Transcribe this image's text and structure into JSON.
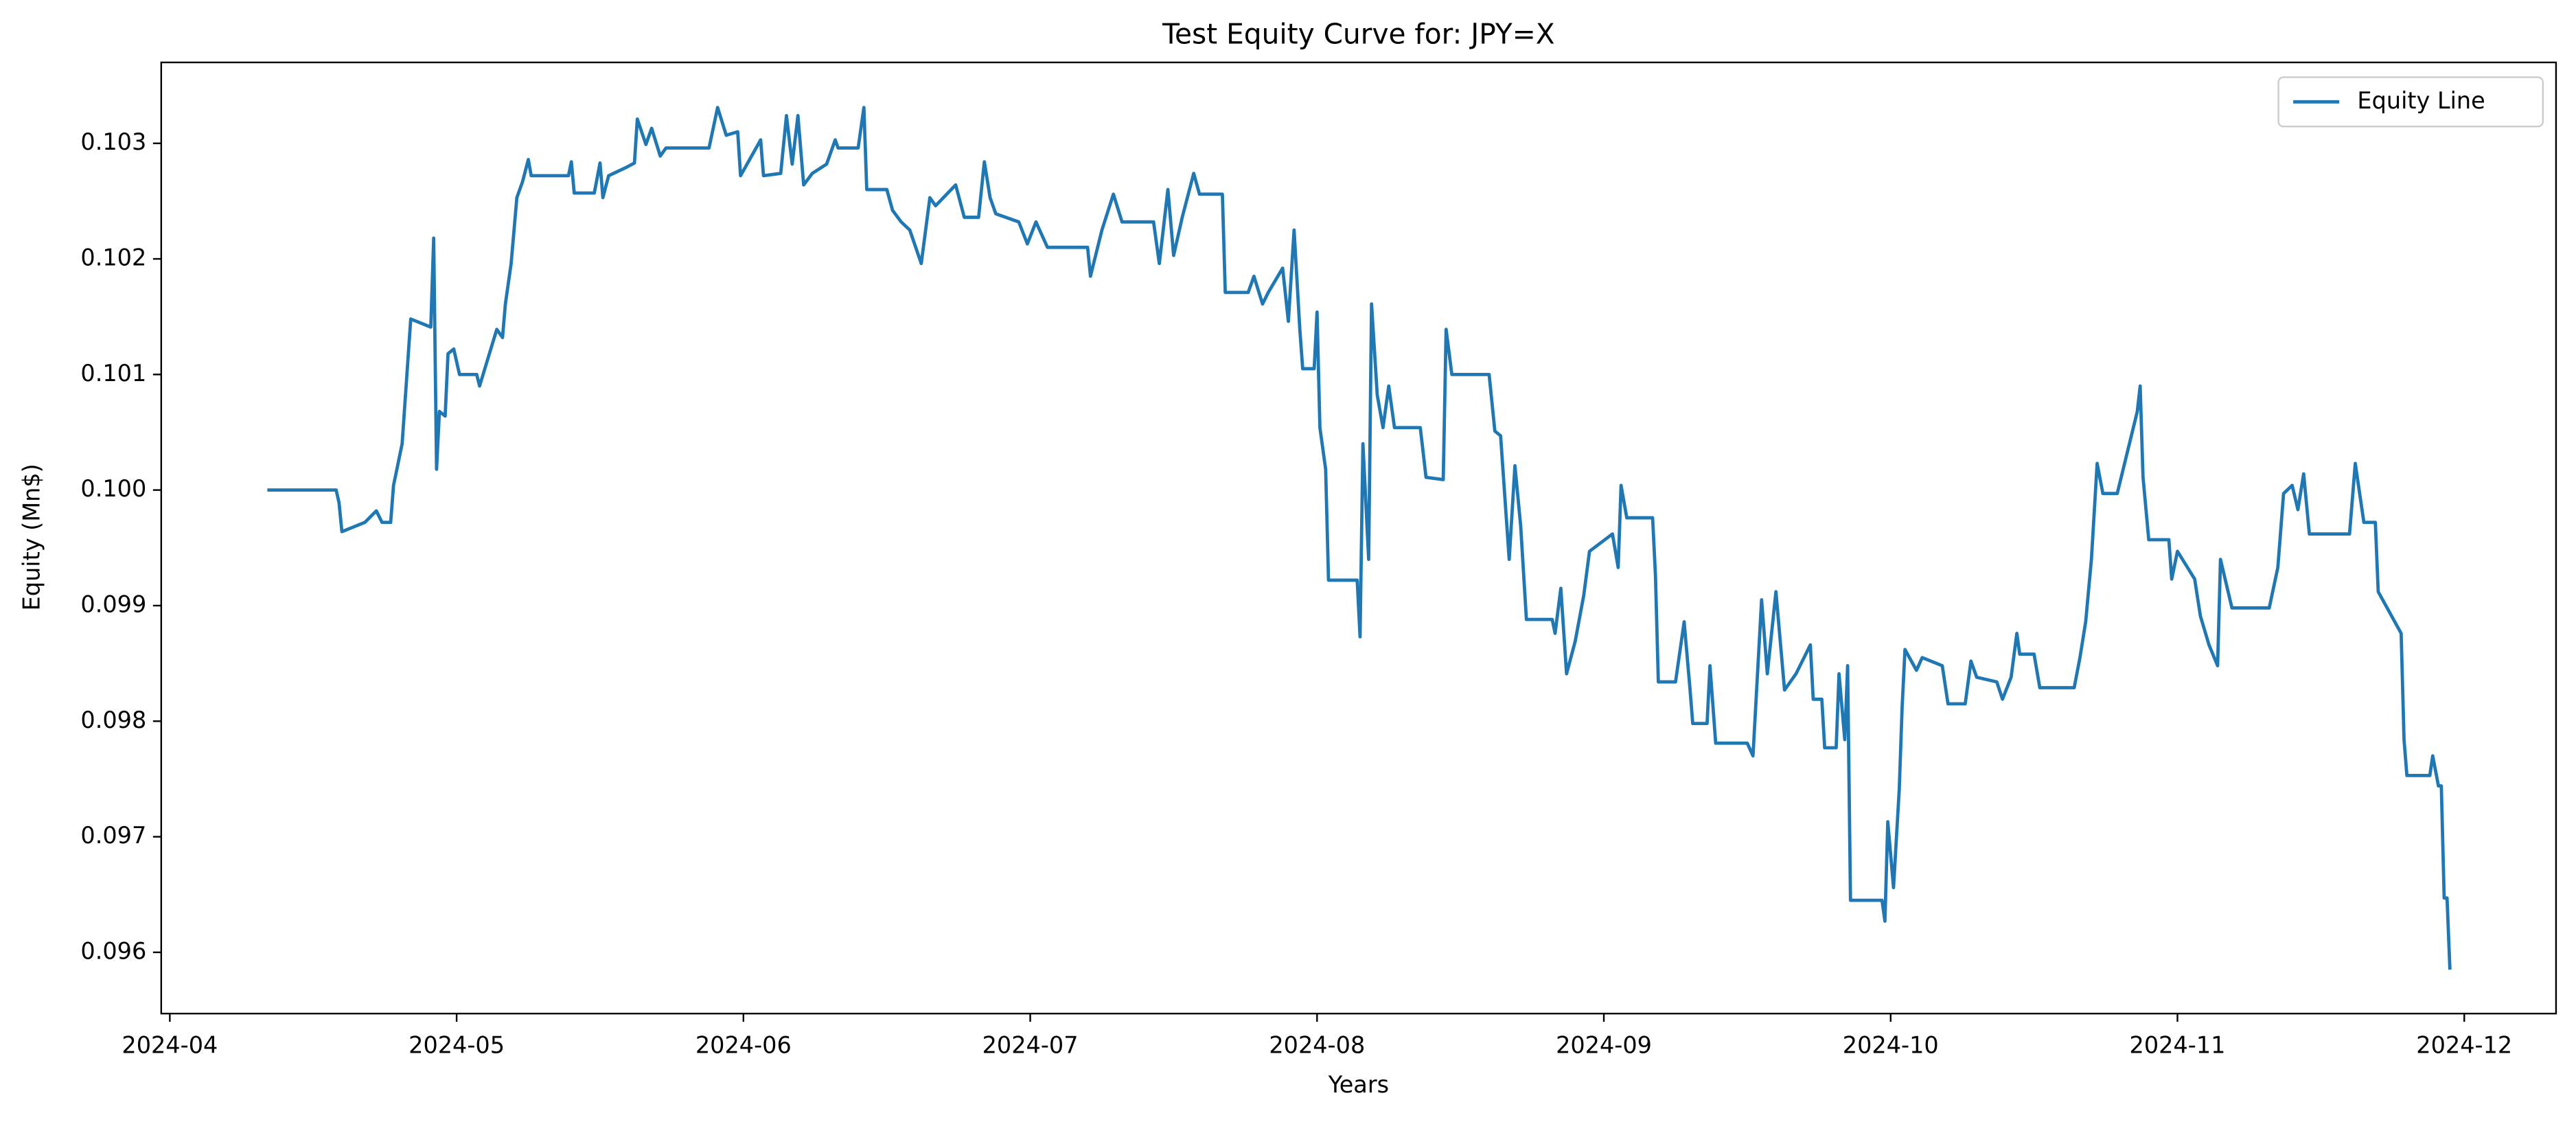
{
  "chart_data": {
    "type": "line",
    "title": "Test Equity Curve for: JPY=X",
    "x_label": "Years",
    "y_label": "Equity (Mn$)",
    "x": [
      0.34,
      0.58,
      0.59,
      0.6,
      0.68,
      0.72,
      0.74,
      0.77,
      0.78,
      0.81,
      0.84,
      0.91,
      0.92,
      0.93,
      0.94,
      0.96,
      0.97,
      0.99,
      1.01,
      1.07,
      1.08,
      1.14,
      1.16,
      1.17,
      1.19,
      1.21,
      1.23,
      1.25,
      1.26,
      1.39,
      1.4,
      1.41,
      1.48,
      1.5,
      1.51,
      1.53,
      1.59,
      1.62,
      1.63,
      1.66,
      1.68,
      1.71,
      1.73,
      1.88,
      1.91,
      1.94,
      1.98,
      1.99,
      2.06,
      2.07,
      2.13,
      2.15,
      2.17,
      2.19,
      2.21,
      2.24,
      2.29,
      2.32,
      2.33,
      2.4,
      2.42,
      2.43,
      2.5,
      2.52,
      2.55,
      2.58,
      2.62,
      2.65,
      2.67,
      2.74,
      2.77,
      2.82,
      2.84,
      2.86,
      2.88,
      2.96,
      2.99,
      3.02,
      3.06,
      3.2,
      3.21,
      3.25,
      3.29,
      3.32,
      3.43,
      3.45,
      3.48,
      3.5,
      3.53,
      3.57,
      3.59,
      3.67,
      3.68,
      3.76,
      3.78,
      3.81,
      3.83,
      3.88,
      3.9,
      3.92,
      3.94,
      3.95,
      3.99,
      4.0,
      4.01,
      4.03,
      4.04,
      4.14,
      4.15,
      4.16,
      4.18,
      4.19,
      4.21,
      4.23,
      4.25,
      4.27,
      4.36,
      4.38,
      4.44,
      4.45,
      4.47,
      4.6,
      4.62,
      4.64,
      4.67,
      4.69,
      4.71,
      4.73,
      4.82,
      4.83,
      4.85,
      4.87,
      4.9,
      4.93,
      4.95,
      5.03,
      5.05,
      5.06,
      5.08,
      5.17,
      5.18,
      5.19,
      5.25,
      5.28,
      5.3,
      5.31,
      5.36,
      5.37,
      5.39,
      5.5,
      5.52,
      5.55,
      5.57,
      5.6,
      5.63,
      5.67,
      5.72,
      5.73,
      5.76,
      5.77,
      5.81,
      5.82,
      5.84,
      5.85,
      5.86,
      5.97,
      5.98,
      5.99,
      6.01,
      6.03,
      6.04,
      6.05,
      6.09,
      6.11,
      6.18,
      6.2,
      6.26,
      6.28,
      6.3,
      6.37,
      6.39,
      6.42,
      6.44,
      6.45,
      6.5,
      6.52,
      6.64,
      6.66,
      6.68,
      6.7,
      6.72,
      6.74,
      6.79,
      6.86,
      6.87,
      6.88,
      6.9,
      6.97,
      6.98,
      7.0,
      7.06,
      7.08,
      7.11,
      7.14,
      7.15,
      7.19,
      7.32,
      7.35,
      7.37,
      7.4,
      7.42,
      7.44,
      7.46,
      7.6,
      7.62,
      7.65,
      7.69,
      7.7,
      7.78,
      7.79,
      7.8,
      7.88,
      7.89,
      7.91,
      7.92,
      7.93,
      7.94,
      7.95
    ],
    "series": [
      {
        "name": "Equity Line",
        "color": "#1f77b4",
        "values": [
          0.1,
          0.1,
          0.09989,
          0.09964,
          0.09972,
          0.09982,
          0.09972,
          0.09972,
          0.10004,
          0.1004,
          0.10148,
          0.10141,
          0.10218,
          0.10018,
          0.10068,
          0.10064,
          0.10118,
          0.10122,
          0.101,
          0.101,
          0.1009,
          0.10139,
          0.10132,
          0.10161,
          0.10196,
          0.10253,
          0.10267,
          0.10286,
          0.10272,
          0.10272,
          0.10284,
          0.10257,
          0.10257,
          0.10283,
          0.10253,
          0.10272,
          0.10279,
          0.10283,
          0.10321,
          0.10299,
          0.10313,
          0.10289,
          0.10296,
          0.10296,
          0.10331,
          0.10307,
          0.1031,
          0.10272,
          0.10303,
          0.10272,
          0.10274,
          0.10324,
          0.10282,
          0.10324,
          0.10264,
          0.10274,
          0.10282,
          0.10303,
          0.10296,
          0.10296,
          0.10331,
          0.1026,
          0.1026,
          0.10242,
          0.10232,
          0.10225,
          0.10196,
          0.10253,
          0.10246,
          0.10264,
          0.10236,
          0.10236,
          0.10284,
          0.10253,
          0.10239,
          0.10232,
          0.10213,
          0.10232,
          0.1021,
          0.1021,
          0.10185,
          0.10225,
          0.10256,
          0.10232,
          0.10232,
          0.10196,
          0.1026,
          0.10203,
          0.10236,
          0.10274,
          0.10256,
          0.10256,
          0.10171,
          0.10171,
          0.10185,
          0.10161,
          0.10171,
          0.10192,
          0.10146,
          0.10225,
          0.10139,
          0.10105,
          0.10105,
          0.10154,
          0.10054,
          0.10018,
          0.09922,
          0.09922,
          0.09873,
          0.1004,
          0.0994,
          0.10161,
          0.10082,
          0.10054,
          0.1009,
          0.10054,
          0.10054,
          0.10011,
          0.10009,
          0.10139,
          0.101,
          0.101,
          0.10051,
          0.10047,
          0.0994,
          0.10021,
          0.09969,
          0.09888,
          0.09888,
          0.09876,
          0.09915,
          0.09841,
          0.09869,
          0.09909,
          0.09947,
          0.09962,
          0.09933,
          0.10004,
          0.09976,
          0.09976,
          0.09926,
          0.09834,
          0.09834,
          0.09886,
          0.09829,
          0.09798,
          0.09798,
          0.09848,
          0.09781,
          0.09781,
          0.0977,
          0.09905,
          0.09841,
          0.09912,
          0.09827,
          0.09841,
          0.09866,
          0.09819,
          0.09819,
          0.09777,
          0.09777,
          0.09841,
          0.09784,
          0.09848,
          0.09645,
          0.09645,
          0.09627,
          0.09713,
          0.09656,
          0.09741,
          0.09812,
          0.09862,
          0.09844,
          0.09855,
          0.09848,
          0.09815,
          0.09815,
          0.09852,
          0.09838,
          0.09834,
          0.09819,
          0.09838,
          0.09876,
          0.09858,
          0.09858,
          0.09829,
          0.09829,
          0.09855,
          0.09886,
          0.0994,
          0.10023,
          0.09997,
          0.09997,
          0.10068,
          0.1009,
          0.10011,
          0.09957,
          0.09957,
          0.09923,
          0.09947,
          0.09923,
          0.09891,
          0.09866,
          0.09848,
          0.0994,
          0.09898,
          0.09898,
          0.09933,
          0.09997,
          0.10004,
          0.09983,
          0.10014,
          0.09962,
          0.09962,
          0.10023,
          0.09972,
          0.09972,
          0.09912,
          0.09876,
          0.09784,
          0.09753,
          0.09753,
          0.0977,
          0.09744,
          0.09744,
          0.09647,
          0.09647,
          0.09585
        ]
      }
    ],
    "xlim": [
      -0.03,
      8.32
    ],
    "xticks": [
      {
        "value": 0,
        "label": "2024-04"
      },
      {
        "value": 1,
        "label": "2024-05"
      },
      {
        "value": 2,
        "label": "2024-06"
      },
      {
        "value": 3,
        "label": "2024-07"
      },
      {
        "value": 4,
        "label": "2024-08"
      },
      {
        "value": 5,
        "label": "2024-09"
      },
      {
        "value": 6,
        "label": "2024-10"
      },
      {
        "value": 7,
        "label": "2024-11"
      },
      {
        "value": 8,
        "label": "2024-12"
      }
    ],
    "ylim": [
      0.09547,
      0.1037
    ],
    "yticks": [
      0.096,
      0.097,
      0.098,
      0.099,
      {
        "value": 0.1,
        "label": "0.100"
      },
      0.101,
      0.102,
      0.103
    ],
    "grid": false,
    "legend": "upper right"
  }
}
